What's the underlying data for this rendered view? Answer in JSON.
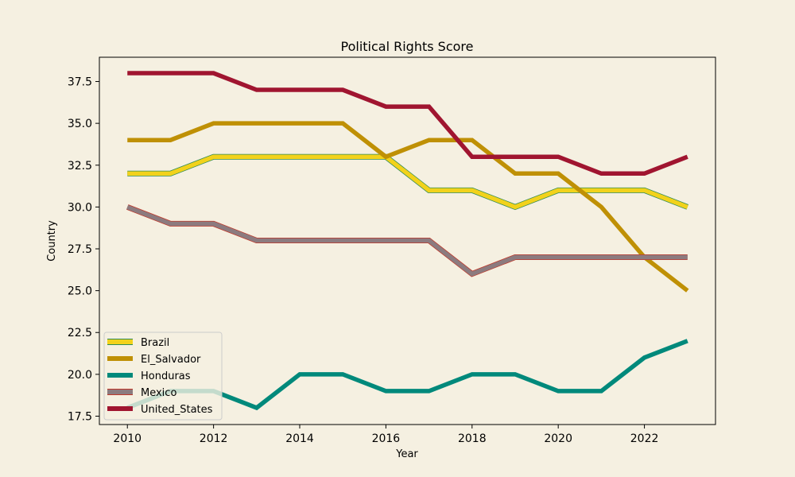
{
  "chart_data": {
    "type": "line",
    "title": "Political Rights Score",
    "xlabel": "Year",
    "ylabel": "Country",
    "xlim": [
      2009.35,
      2023.65
    ],
    "ylim": [
      17.0,
      38.95
    ],
    "xticks": [
      2010,
      2012,
      2014,
      2016,
      2018,
      2020,
      2022
    ],
    "xtick_labels": [
      "2010",
      "2012",
      "2014",
      "2016",
      "2018",
      "2020",
      "2022"
    ],
    "yticks": [
      17.5,
      20.0,
      22.5,
      25.0,
      27.5,
      30.0,
      32.5,
      35.0,
      37.5
    ],
    "ytick_labels": [
      "17.5",
      "20.0",
      "22.5",
      "25.0",
      "27.5",
      "30.0",
      "32.5",
      "35.0",
      "37.5"
    ],
    "grid": false,
    "legend_position": "lower-left",
    "x": [
      2010,
      2011,
      2012,
      2013,
      2014,
      2015,
      2016,
      2017,
      2018,
      2019,
      2020,
      2021,
      2022,
      2023
    ],
    "series": [
      {
        "name": "Brazil",
        "color": "#f2d21b",
        "edge": "#2e8b57",
        "values": [
          32,
          32,
          33,
          33,
          33,
          33,
          33,
          31,
          31,
          30,
          31,
          31,
          31,
          30
        ]
      },
      {
        "name": "El_Salvador",
        "color": "#bf9005",
        "values": [
          34,
          34,
          35,
          35,
          35,
          35,
          33,
          34,
          34,
          32,
          32,
          30,
          27,
          25
        ]
      },
      {
        "name": "Honduras",
        "color": "#00897b",
        "values": [
          18,
          19,
          19,
          18,
          20,
          20,
          19,
          19,
          20,
          20,
          19,
          19,
          21,
          22
        ]
      },
      {
        "name": "Mexico",
        "color": "#8c7b7f",
        "edge": "#c0392b",
        "values": [
          30,
          29,
          29,
          28,
          28,
          28,
          28,
          28,
          26,
          27,
          27,
          27,
          27,
          27
        ]
      },
      {
        "name": "United_States",
        "color": "#a01530",
        "values": [
          38,
          38,
          38,
          37,
          37,
          37,
          36,
          36,
          33,
          33,
          33,
          32,
          32,
          33
        ]
      }
    ]
  }
}
